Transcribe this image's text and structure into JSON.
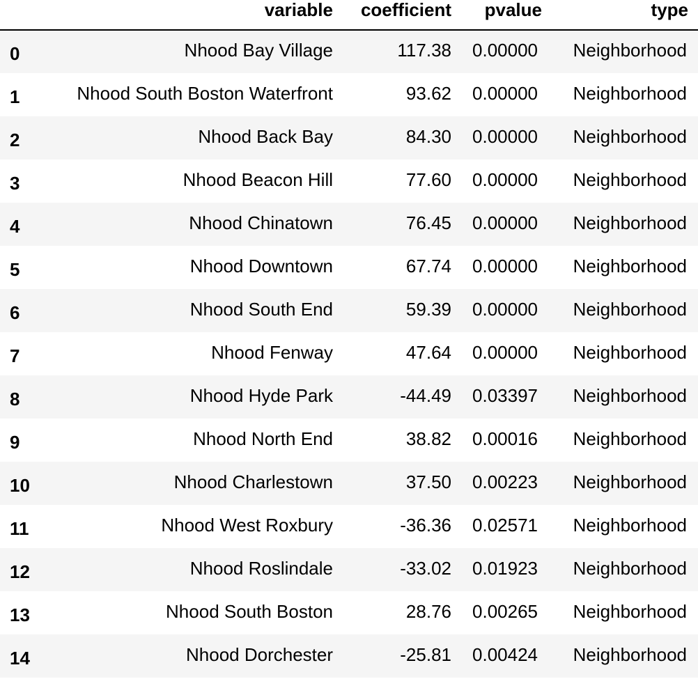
{
  "table": {
    "headers": {
      "index": "",
      "variable": "variable",
      "coefficient": "coefficient",
      "pvalue": "pvalue",
      "type": "type"
    },
    "rows": [
      {
        "index": "0",
        "variable": "Nhood Bay Village",
        "coefficient": "117.38",
        "pvalue": "0.00000",
        "type": "Neighborhood"
      },
      {
        "index": "1",
        "variable": "Nhood South Boston Waterfront",
        "coefficient": "93.62",
        "pvalue": "0.00000",
        "type": "Neighborhood"
      },
      {
        "index": "2",
        "variable": "Nhood Back Bay",
        "coefficient": "84.30",
        "pvalue": "0.00000",
        "type": "Neighborhood"
      },
      {
        "index": "3",
        "variable": "Nhood Beacon Hill",
        "coefficient": "77.60",
        "pvalue": "0.00000",
        "type": "Neighborhood"
      },
      {
        "index": "4",
        "variable": "Nhood Chinatown",
        "coefficient": "76.45",
        "pvalue": "0.00000",
        "type": "Neighborhood"
      },
      {
        "index": "5",
        "variable": "Nhood Downtown",
        "coefficient": "67.74",
        "pvalue": "0.00000",
        "type": "Neighborhood"
      },
      {
        "index": "6",
        "variable": "Nhood South End",
        "coefficient": "59.39",
        "pvalue": "0.00000",
        "type": "Neighborhood"
      },
      {
        "index": "7",
        "variable": "Nhood Fenway",
        "coefficient": "47.64",
        "pvalue": "0.00000",
        "type": "Neighborhood"
      },
      {
        "index": "8",
        "variable": "Nhood Hyde Park",
        "coefficient": "-44.49",
        "pvalue": "0.03397",
        "type": "Neighborhood"
      },
      {
        "index": "9",
        "variable": "Nhood North End",
        "coefficient": "38.82",
        "pvalue": "0.00016",
        "type": "Neighborhood"
      },
      {
        "index": "10",
        "variable": "Nhood Charlestown",
        "coefficient": "37.50",
        "pvalue": "0.00223",
        "type": "Neighborhood"
      },
      {
        "index": "11",
        "variable": "Nhood West Roxbury",
        "coefficient": "-36.36",
        "pvalue": "0.02571",
        "type": "Neighborhood"
      },
      {
        "index": "12",
        "variable": "Nhood Roslindale",
        "coefficient": "-33.02",
        "pvalue": "0.01923",
        "type": "Neighborhood"
      },
      {
        "index": "13",
        "variable": "Nhood South Boston",
        "coefficient": "28.76",
        "pvalue": "0.00265",
        "type": "Neighborhood"
      },
      {
        "index": "14",
        "variable": "Nhood Dorchester",
        "coefficient": "-25.81",
        "pvalue": "0.00424",
        "type": "Neighborhood"
      }
    ]
  },
  "colors": {
    "stripe": "#f5f5f5",
    "background": "#ffffff",
    "text": "#000000",
    "header_rule": "#000000"
  }
}
